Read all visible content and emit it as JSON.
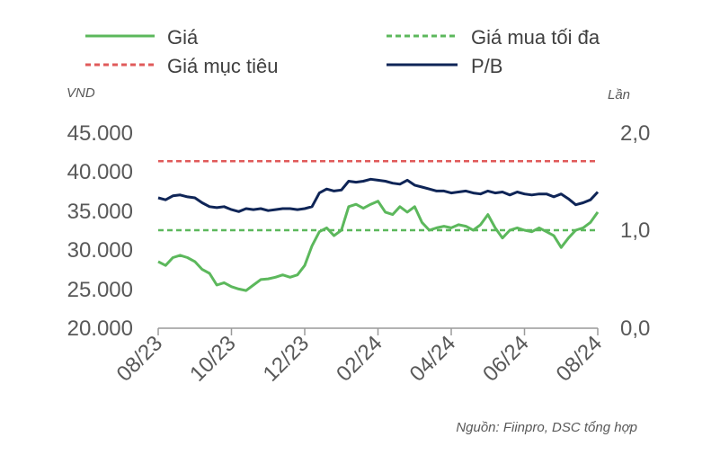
{
  "chart_data": {
    "type": "line",
    "title": "",
    "y_left_unit": "VND",
    "y_right_unit": "Lần",
    "y_left_ticks": [
      "45.000",
      "40.000",
      "35.000",
      "30.000",
      "25.000",
      "20.000"
    ],
    "y_right_ticks": [
      "2,0",
      "1,0",
      "0,0"
    ],
    "ylim_left": [
      20000,
      45000
    ],
    "ylim_right": [
      0,
      2.0
    ],
    "x_ticks": [
      "08/23",
      "10/23",
      "12/23",
      "02/24",
      "04/24",
      "06/24",
      "08/24"
    ],
    "xlim": [
      0,
      12
    ],
    "grid": false,
    "legend_position": "top",
    "legend": [
      {
        "label": "Giá",
        "color": "#5cb85c",
        "style": "solid"
      },
      {
        "label": "Giá mua tối đa",
        "color": "#5cb85c",
        "style": "dashed"
      },
      {
        "label": "Giá mục tiêu",
        "color": "#e05a5a",
        "style": "dashed"
      },
      {
        "label": "P/B",
        "color": "#0f2557",
        "style": "solid"
      }
    ],
    "series": [
      {
        "name": "Giá",
        "axis": "left",
        "color": "#5cb85c",
        "x": [
          0,
          0.2,
          0.4,
          0.6,
          0.8,
          1.0,
          1.2,
          1.4,
          1.6,
          1.8,
          2.0,
          2.2,
          2.4,
          2.6,
          2.8,
          3.0,
          3.2,
          3.4,
          3.6,
          3.8,
          4.0,
          4.2,
          4.4,
          4.6,
          4.8,
          5.0,
          5.2,
          5.4,
          5.6,
          5.8,
          6.0,
          6.2,
          6.4,
          6.6,
          6.8,
          7.0,
          7.2,
          7.4,
          7.6,
          7.8,
          8.0,
          8.2,
          8.4,
          8.6,
          8.8,
          9.0,
          9.2,
          9.4,
          9.6,
          9.8,
          10.0,
          10.2,
          10.4,
          10.6,
          10.8,
          11.0,
          11.2,
          11.4,
          11.6,
          11.8,
          12.0
        ],
        "values": [
          28500,
          28000,
          29000,
          29300,
          29000,
          28500,
          27500,
          27000,
          25500,
          25800,
          25300,
          25000,
          24800,
          25500,
          26200,
          26300,
          26500,
          26800,
          26500,
          26800,
          28000,
          30500,
          32300,
          32800,
          31800,
          32500,
          35500,
          35800,
          35300,
          35800,
          36200,
          34800,
          34500,
          35500,
          34800,
          35500,
          33500,
          32500,
          32800,
          33000,
          32800,
          33200,
          33000,
          32500,
          33200,
          34500,
          32800,
          31500,
          32500,
          32800,
          32500,
          32300,
          32800,
          32300,
          31800,
          30300,
          31500,
          32500,
          32800,
          33500,
          34800
        ]
      },
      {
        "name": "P/B",
        "axis": "right",
        "color": "#0f2557",
        "x": [
          0,
          0.2,
          0.4,
          0.6,
          0.8,
          1.0,
          1.2,
          1.4,
          1.6,
          1.8,
          2.0,
          2.2,
          2.4,
          2.6,
          2.8,
          3.0,
          3.2,
          3.4,
          3.6,
          3.8,
          4.0,
          4.2,
          4.4,
          4.6,
          4.8,
          5.0,
          5.2,
          5.4,
          5.6,
          5.8,
          6.0,
          6.2,
          6.4,
          6.6,
          6.8,
          7.0,
          7.2,
          7.4,
          7.6,
          7.8,
          8.0,
          8.2,
          8.4,
          8.6,
          8.8,
          9.0,
          9.2,
          9.4,
          9.6,
          9.8,
          10.0,
          10.2,
          10.4,
          10.6,
          10.8,
          11.0,
          11.2,
          11.4,
          11.6,
          11.8,
          12.0
        ],
        "values": [
          1.33,
          1.31,
          1.35,
          1.36,
          1.34,
          1.33,
          1.28,
          1.24,
          1.23,
          1.24,
          1.21,
          1.19,
          1.22,
          1.21,
          1.22,
          1.2,
          1.21,
          1.22,
          1.22,
          1.21,
          1.22,
          1.24,
          1.38,
          1.42,
          1.4,
          1.41,
          1.5,
          1.49,
          1.5,
          1.52,
          1.51,
          1.5,
          1.48,
          1.47,
          1.51,
          1.46,
          1.44,
          1.42,
          1.4,
          1.4,
          1.38,
          1.39,
          1.4,
          1.38,
          1.37,
          1.4,
          1.38,
          1.39,
          1.36,
          1.39,
          1.37,
          1.36,
          1.37,
          1.37,
          1.34,
          1.37,
          1.32,
          1.26,
          1.28,
          1.31,
          1.39
        ]
      },
      {
        "name": "Giá mua tối đa",
        "axis": "left",
        "color": "#5cb85c",
        "constant": 32500
      },
      {
        "name": "Giá mục tiêu",
        "axis": "left",
        "color": "#e05a5a",
        "constant": 41300
      }
    ],
    "source_note": "Nguồn: Fiinpro, DSC tổng hợp"
  }
}
